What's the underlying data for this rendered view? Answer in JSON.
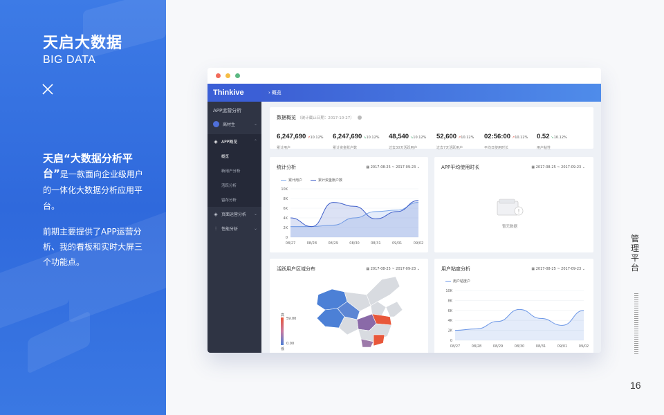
{
  "left_panel": {
    "title": "天启大数据",
    "subtitle": "BIG DATA",
    "close_icon": "close-icon",
    "intro_head": "天启“大数据分析平台”",
    "intro_body": "是一款面向企业级用户的一体化大数据分析应用平台。",
    "intro_body2": "前期主要提供了APP运营分析、我的看板和实时大屏三个功能点。"
  },
  "right_rail": {
    "vertical_label": "管理平台",
    "page_number": "16"
  },
  "browser": {
    "dots": [
      "#f26b5a",
      "#f5bd45",
      "#5bb882"
    ]
  },
  "app": {
    "logo": "Thinkive",
    "breadcrumb": "概览",
    "sidebar": {
      "section": "APP运营分析",
      "user": "高材生",
      "items": [
        {
          "label": "APP概览",
          "icon": "layers-icon"
        },
        {
          "label": "页面运营分析",
          "icon": "layers-icon"
        },
        {
          "label": "性能分析",
          "icon": "sliders-icon"
        }
      ],
      "sub_items": [
        "概览",
        "新用户分析",
        "活跃分析",
        "留存分析"
      ]
    },
    "overview": {
      "title": "数据概览",
      "note": "（统计截止日期：2017-10-27）",
      "kpis": [
        {
          "value": "6,247,690",
          "change": "10.12%",
          "label": "累计用户",
          "dir": "up"
        },
        {
          "value": "6,247,690",
          "change": "10.12%",
          "label": "累计资金账户数",
          "dir": "down"
        },
        {
          "value": "48,540",
          "change": "10.12%",
          "label": "过去30天活跃用户",
          "dir": "down"
        },
        {
          "value": "52,600",
          "change": "10.12%",
          "label": "过去7天活跃用户",
          "dir": "up"
        },
        {
          "value": "02:56:00",
          "change": "10.12%",
          "label": "平均日使用时长",
          "dir": "up"
        },
        {
          "value": "0.52",
          "change": "10.12%",
          "label": "用户粘性",
          "dir": "down"
        }
      ]
    },
    "stats_card": {
      "title": "统计分析",
      "date_range": "2017-08-25 ~ 2017-09-23",
      "legend": [
        "累计用户",
        "累计资金账户数"
      ]
    },
    "usage_card": {
      "title": "APP平均使用时长",
      "date_range": "2017-08-25 ~ 2017-09-23",
      "empty_text": "暂无数据"
    },
    "region_card": {
      "title": "活跃用户区域分布",
      "date_range": "2017-08-25 ~ 2017-09-23",
      "legend_high": "高",
      "legend_high_val": "59.00",
      "legend_low": "低",
      "legend_low_val": "0.00"
    },
    "stickiness_card": {
      "title": "用户粘度分析",
      "date_range": "2017-08-25 ~ 2017-09-23",
      "legend": [
        "用户粘度户"
      ]
    }
  },
  "chart_data": [
    {
      "type": "line",
      "title": "统计分析",
      "x": [
        "08/27",
        "08/28",
        "08/29",
        "08/30",
        "08/31",
        "09/01",
        "09/02"
      ],
      "ylim": [
        0,
        10000
      ],
      "yticks": [
        "0",
        "2K",
        "4K",
        "6K",
        "8K",
        "10K"
      ],
      "series": [
        {
          "name": "累计用户",
          "values": [
            2200,
            2200,
            2500,
            4000,
            5300,
            5600,
            7200
          ]
        },
        {
          "name": "累计资金账户数",
          "values": [
            4000,
            2200,
            7200,
            6400,
            3800,
            5300,
            7600
          ]
        }
      ],
      "colors": [
        "#7ba7ea",
        "#3e5ec9"
      ]
    },
    {
      "type": "area",
      "title": "用户粘度分析",
      "x": [
        "08/27",
        "08/28",
        "08/29",
        "08/30",
        "08/31",
        "09/01",
        "09/02"
      ],
      "ylim": [
        0,
        10000
      ],
      "yticks": [
        "0",
        "2K",
        "4K",
        "6K",
        "8K",
        "10K"
      ],
      "series": [
        {
          "name": "用户粘度户",
          "values": [
            2000,
            2300,
            3800,
            6200,
            4400,
            3000,
            6000
          ]
        }
      ],
      "colors": [
        "#6b96e6"
      ]
    }
  ]
}
